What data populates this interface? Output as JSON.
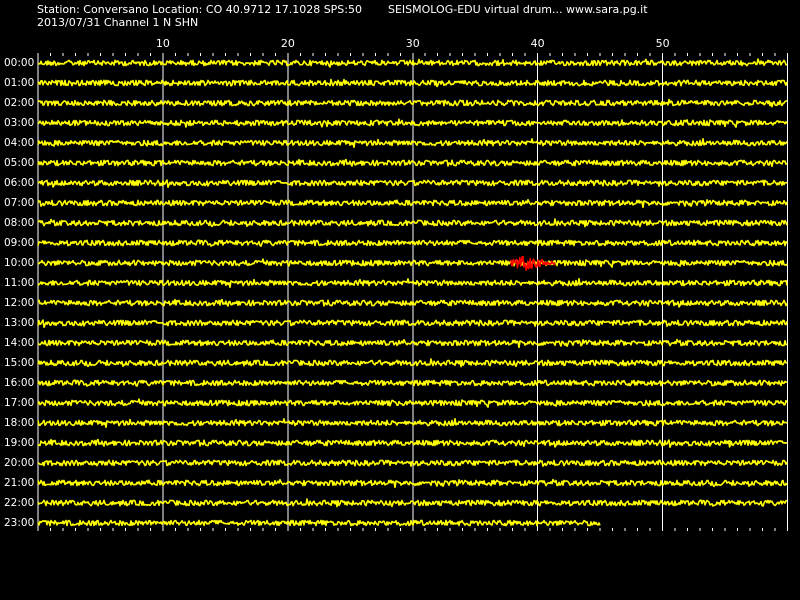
{
  "header": {
    "station_line": "Station: Conversano Location: CO 40.9712 17.1028 SPS:50",
    "date_line": "2013/07/31  Channel 1 N SHN",
    "software_line": "SEISMOLOG-EDU virtual drum... www.sara.pg.it"
  },
  "minute_labels": [
    "10",
    "20",
    "30",
    "40",
    "50"
  ],
  "row_labels": [
    "00:00",
    "01:00",
    "02:00",
    "03:00",
    "04:00",
    "05:00",
    "06:00",
    "07:00",
    "08:00",
    "09:00",
    "10:00",
    "11:00",
    "12:00",
    "13:00",
    "14:00",
    "15:00",
    "16:00",
    "17:00",
    "18:00",
    "19:00",
    "20:00",
    "21:00",
    "22:00",
    "23:00"
  ],
  "colors": {
    "background": "#000000",
    "trace": "#ffff00",
    "event": "#ff0000",
    "grid": "#ffffff",
    "text": "#ffffff"
  },
  "drum": {
    "minutes_per_row": 60,
    "minute_tick_interval": 1,
    "minute_grid_interval": 10,
    "last_row_end_minute": 45,
    "events": [
      {
        "row": 10,
        "start_minute": 37.8,
        "end_minute": 41.4,
        "color": "event"
      },
      {
        "row": 19,
        "start_minute": 55.3,
        "end_minute": 55.6,
        "color": "trace"
      }
    ]
  }
}
